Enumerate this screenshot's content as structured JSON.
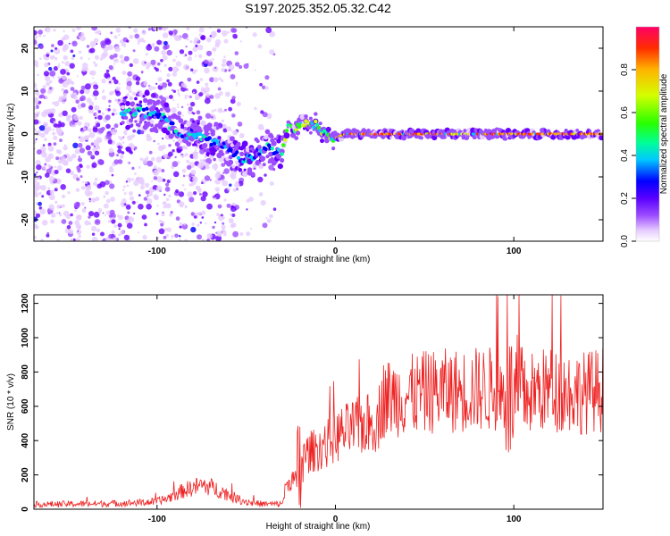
{
  "title": "S197.2025.352.05.32.C42",
  "chart_data": [
    {
      "type": "heatmap",
      "name": "spectrogram",
      "title": "S197.2025.352.05.32.C42",
      "xlabel": "Height of straight line (km)",
      "ylabel": "Frequency (Hz)",
      "xlim": [
        -169,
        150
      ],
      "ylim": [
        -25,
        25
      ],
      "xticks": [
        -100,
        0,
        100
      ],
      "xtick_labels": [
        "-100",
        "0",
        "100"
      ],
      "yticks": [
        -20,
        -10,
        0,
        10,
        20
      ],
      "ytick_labels": [
        "-20",
        "-10",
        "0",
        "10",
        "20"
      ],
      "colorbar": {
        "label": "Normalized spectral amplitude",
        "range": [
          0,
          1
        ],
        "ticks": [
          0.0,
          0.2,
          0.4,
          0.6,
          0.8
        ],
        "tick_labels": [
          "0.0",
          "0.2",
          "0.4",
          "0.6",
          "0.8"
        ],
        "colors": [
          "#ffffff",
          "#e6ccff",
          "#9c4dff",
          "#6a00ff",
          "#0000ff",
          "#00c8ff",
          "#00ff96",
          "#28ff00",
          "#d4ff00",
          "#ffb400",
          "#ff2d00",
          "#ff0066"
        ]
      },
      "ridge": {
        "x": [
          -100,
          -95,
          -90,
          -85,
          -80,
          -75,
          -70,
          -65,
          -60,
          -55,
          -50,
          -45,
          -40,
          -35,
          -30,
          -28,
          -25,
          -22,
          -20,
          -15,
          -10,
          -5,
          0,
          5,
          10,
          50,
          100,
          150
        ],
        "freq": [
          5,
          3,
          1,
          0,
          0,
          -1,
          -2,
          -2,
          -4,
          -5,
          -6,
          -5,
          -3,
          -4,
          -4,
          0,
          3,
          1,
          2,
          2,
          2,
          0,
          -1,
          0,
          0,
          0,
          0,
          0
        ]
      }
    },
    {
      "type": "line",
      "name": "snr",
      "xlabel": "Height of straight line (km)",
      "ylabel": "SNR (10 * v/v)",
      "xlim": [
        -169,
        150
      ],
      "ylim": [
        0,
        1250
      ],
      "xticks": [
        -100,
        0,
        100
      ],
      "xtick_labels": [
        "-100",
        "0",
        "100"
      ],
      "yticks": [
        0,
        200,
        400,
        600,
        800,
        1000,
        1200
      ],
      "ytick_labels": [
        "0",
        "200",
        "400",
        "600",
        "800",
        "1000",
        "1200"
      ],
      "color": "#ee2222",
      "x": [
        -169,
        -150,
        -130,
        -110,
        -100,
        -95,
        -90,
        -85,
        -80,
        -75,
        -70,
        -65,
        -60,
        -55,
        -50,
        -45,
        -40,
        -35,
        -30,
        -28,
        -25,
        -22,
        -20,
        -18,
        -15,
        -10,
        -5,
        0,
        5,
        10,
        15,
        20,
        24,
        26,
        30,
        40,
        50,
        60,
        70,
        80,
        90,
        95,
        100,
        105,
        110,
        120,
        130,
        140,
        150
      ],
      "y": [
        28,
        30,
        32,
        38,
        45,
        60,
        85,
        110,
        125,
        140,
        130,
        110,
        85,
        60,
        45,
        35,
        30,
        30,
        30,
        120,
        180,
        160,
        250,
        300,
        330,
        350,
        380,
        420,
        450,
        470,
        490,
        500,
        520,
        640,
        650,
        660,
        680,
        690,
        690,
        700,
        700,
        660,
        640,
        640,
        680,
        700,
        690,
        680,
        700
      ]
    }
  ]
}
